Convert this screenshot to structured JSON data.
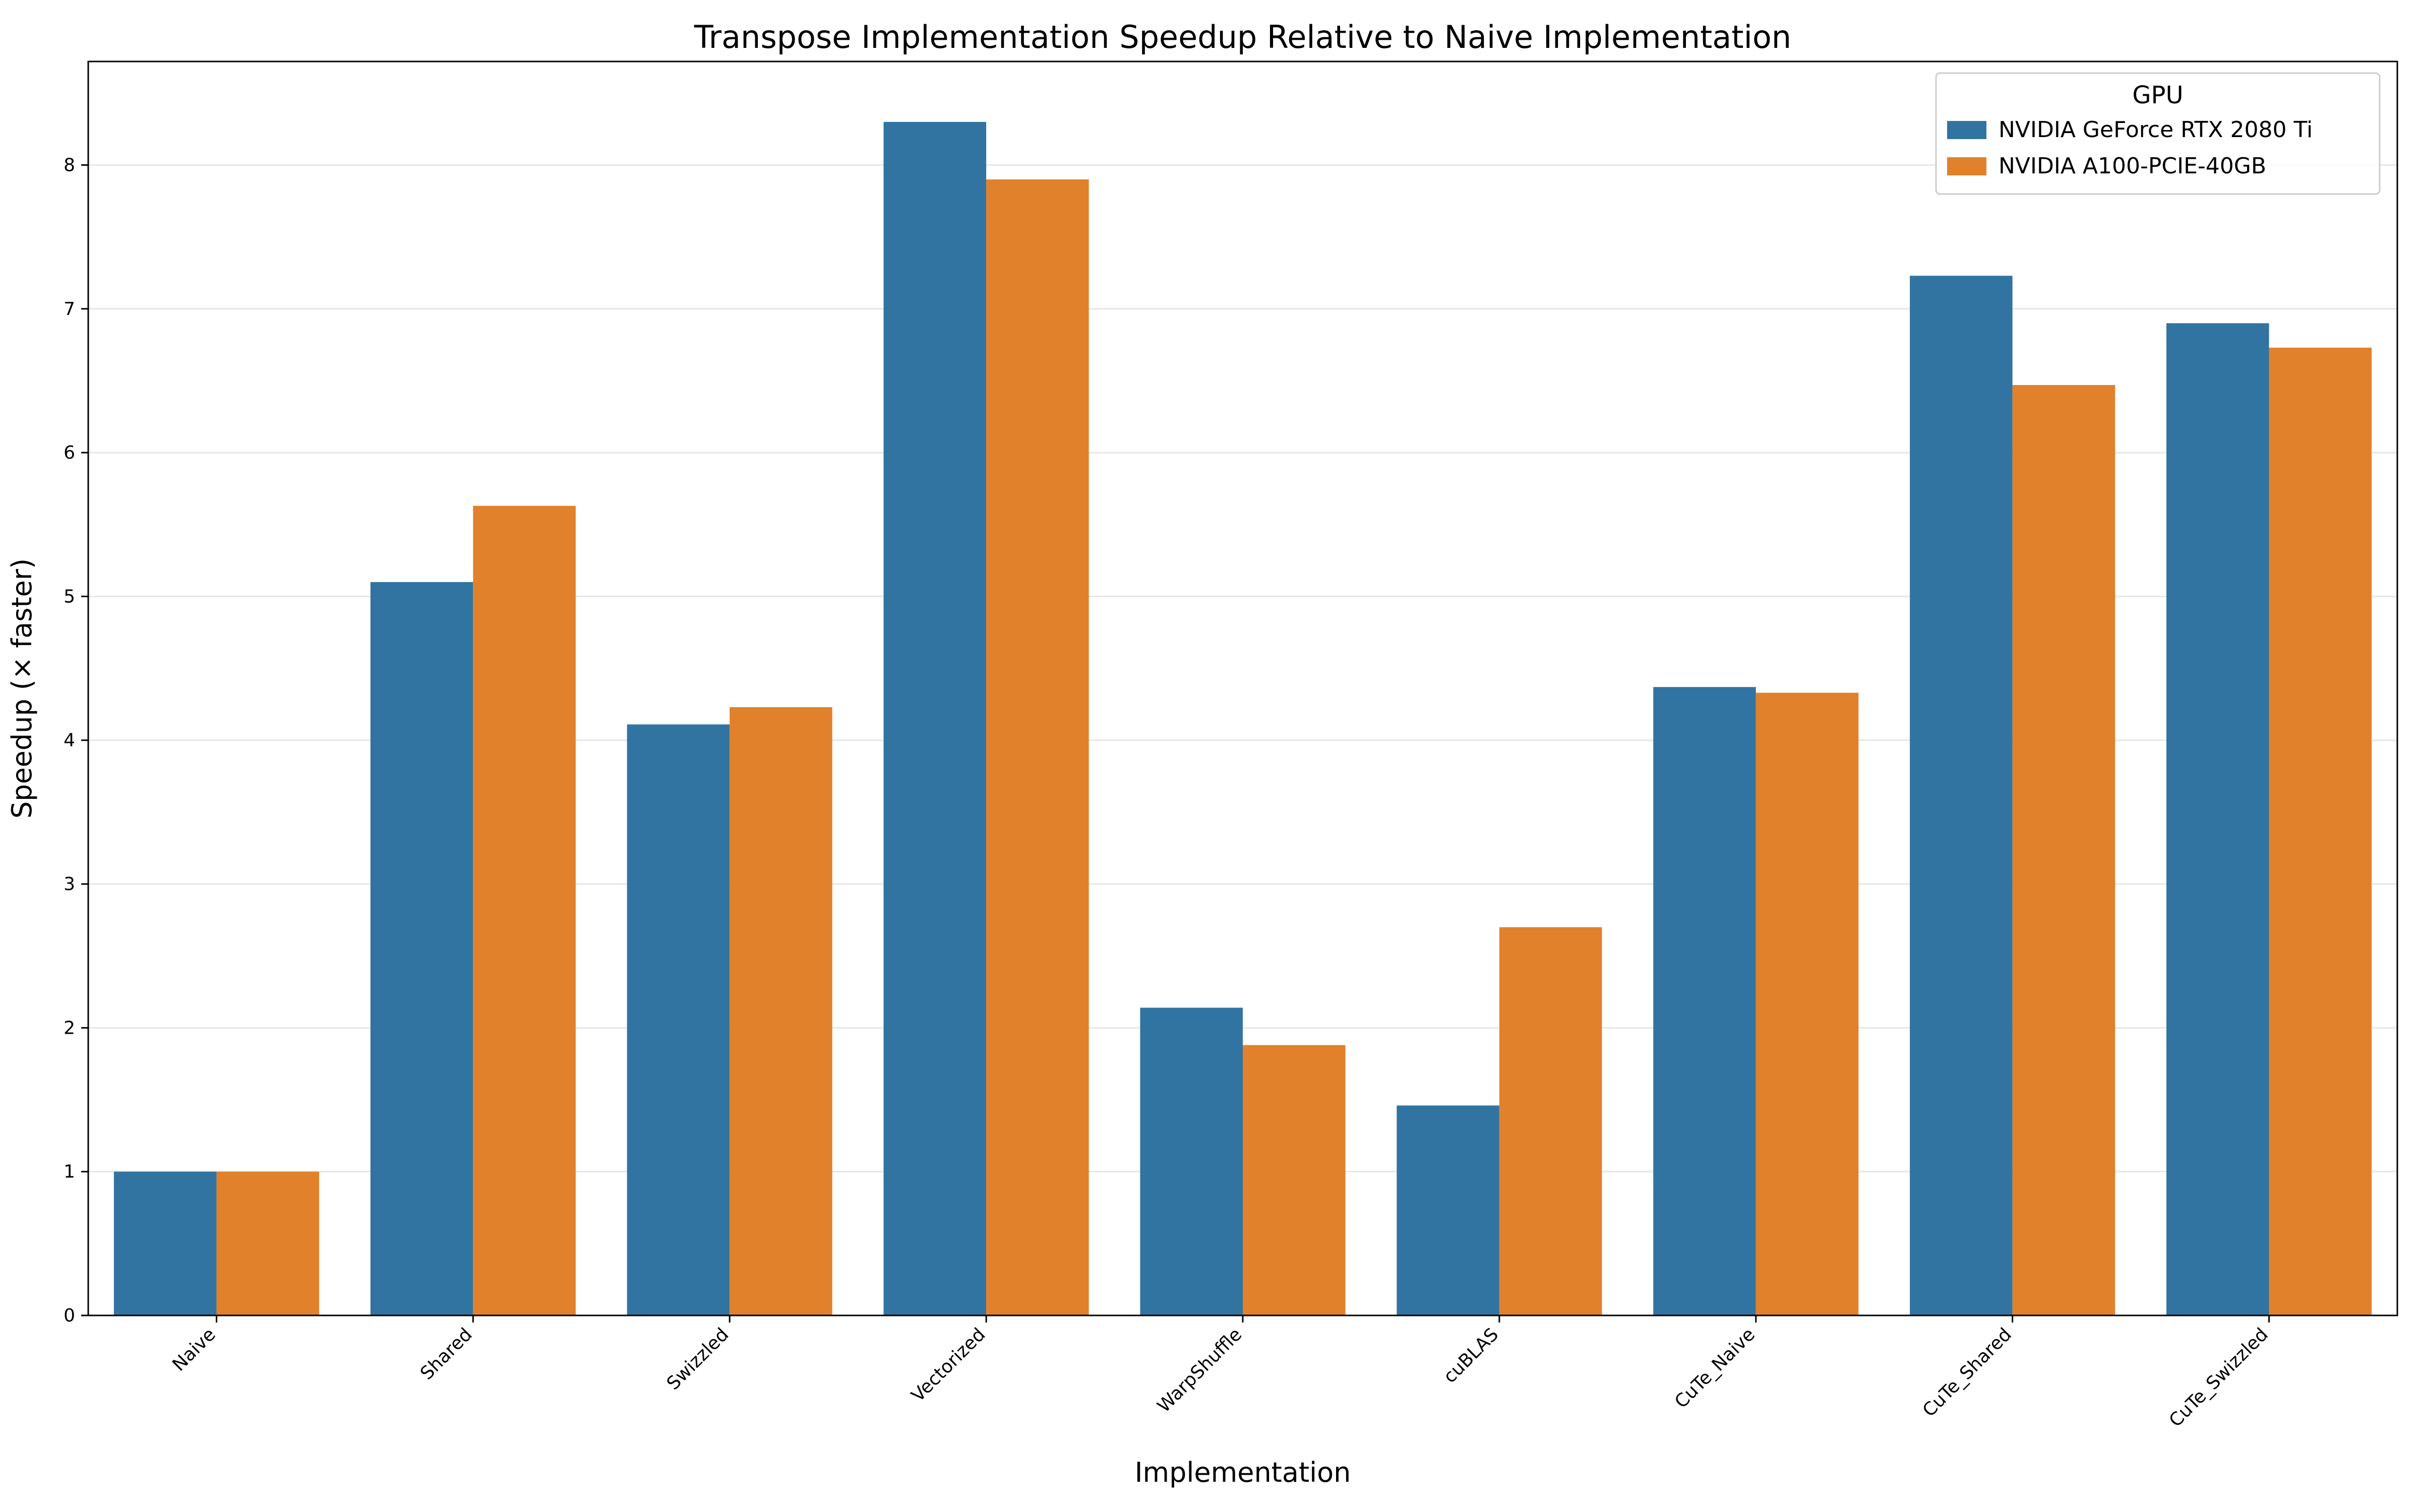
{
  "chart_data": {
    "type": "bar",
    "title": "Transpose Implementation Speedup Relative to Naive Implementation",
    "xlabel": "Implementation",
    "ylabel": "Speedup (× faster)",
    "categories": [
      "Naive",
      "Shared",
      "Swizzled",
      "Vectorized",
      "WarpShuffle",
      "cuBLAS",
      "CuTe_Naive",
      "CuTe_Shared",
      "CuTe_Swizzled"
    ],
    "series": [
      {
        "name": "NVIDIA GeForce RTX 2080 Ti",
        "color": "#3274a1",
        "values": [
          1.0,
          5.1,
          4.11,
          8.3,
          2.14,
          1.46,
          4.37,
          7.23,
          6.9
        ]
      },
      {
        "name": "NVIDIA A100-PCIE-40GB",
        "color": "#e1812c",
        "values": [
          1.0,
          5.63,
          4.23,
          7.9,
          1.88,
          2.7,
          4.33,
          6.47,
          6.73
        ]
      }
    ],
    "ylim": [
      0,
      8.72
    ],
    "yticks": [
      0,
      1,
      2,
      3,
      4,
      5,
      6,
      7,
      8
    ],
    "grid": "y",
    "legend": {
      "title": "GPU",
      "placement": "top-right"
    }
  }
}
